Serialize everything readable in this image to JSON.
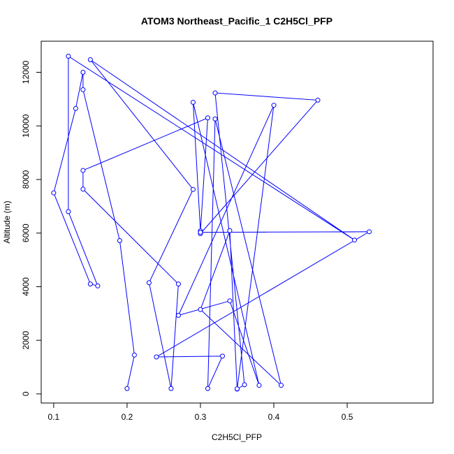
{
  "chart_data": {
    "type": "line",
    "title": "ATOM3 Northeast_Pacific_1 C2H5Cl_PFP",
    "xlabel": "C2H5Cl_PFP",
    "ylabel": "Altitude (m)",
    "xlim": [
      0.083,
      0.617
    ],
    "ylim": [
      -340,
      13160
    ],
    "xticks": [
      0.1,
      0.2,
      0.3,
      0.4,
      0.5
    ],
    "xtick_labels": [
      "0.1",
      "0.2",
      "0.3",
      "0.4",
      "0.5"
    ],
    "yticks": [
      0,
      2000,
      4000,
      6000,
      8000,
      10000,
      12000
    ],
    "ytick_labels": [
      "0",
      "2000",
      "4000",
      "6000",
      "8000",
      "10000",
      "12000"
    ],
    "grid": false,
    "color": "#0000ff",
    "series": [
      {
        "marker": "open-circle",
        "x": [
          0.2,
          0.21,
          0.19,
          0.14,
          0.14,
          0.13,
          0.1,
          0.15,
          0.16,
          0.12,
          0.12,
          0.51,
          0.15,
          0.29,
          0.23,
          0.26,
          0.27,
          0.14,
          0.14,
          0.31,
          0.3,
          0.29,
          0.38,
          0.34,
          0.27,
          0.4,
          0.35,
          0.36,
          0.32,
          0.46,
          0.3,
          0.3,
          0.53,
          0.24,
          0.33,
          0.31,
          0.32,
          0.41,
          0.3,
          0.34,
          0.35
        ],
        "y": [
          200,
          1450,
          5720,
          11350,
          12000,
          10650,
          7500,
          4100,
          4030,
          6800,
          12600,
          5740,
          12470,
          7630,
          4150,
          200,
          4100,
          7640,
          8340,
          10300,
          6080,
          10880,
          320,
          3470,
          2930,
          10770,
          180,
          340,
          11230,
          10960,
          5980,
          6030,
          6050,
          1380,
          1410,
          200,
          10260,
          320,
          3150,
          6090,
          190
        ]
      }
    ]
  }
}
